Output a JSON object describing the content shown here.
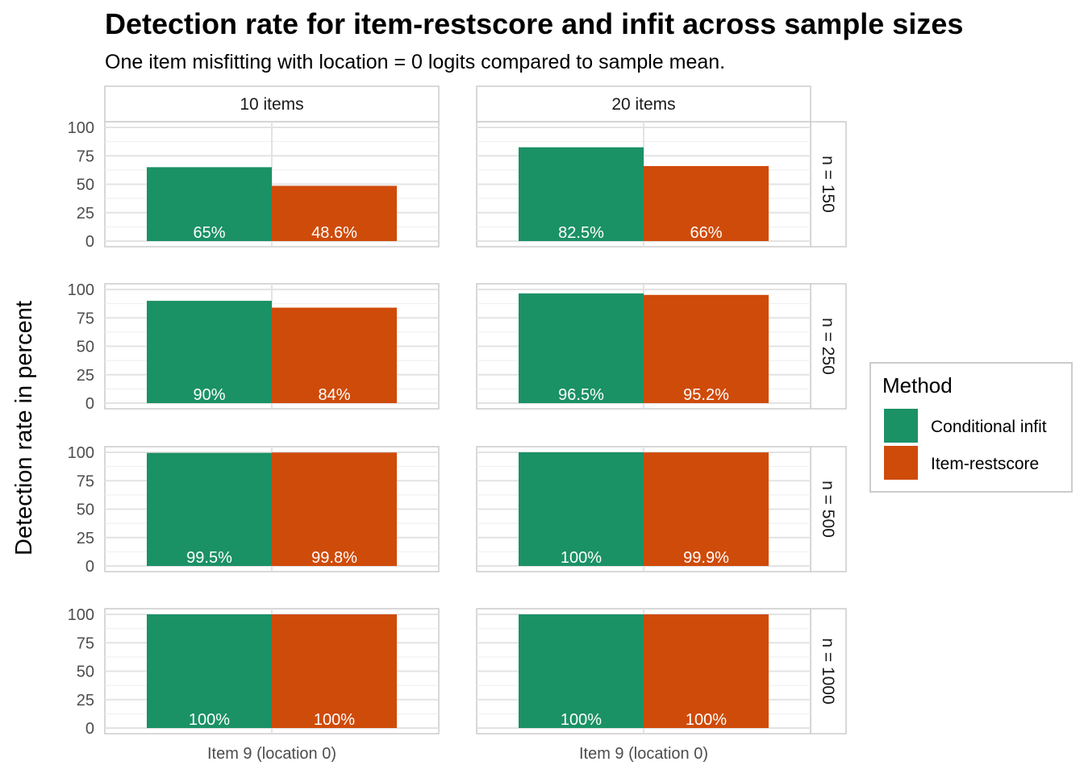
{
  "chart_data": {
    "type": "bar",
    "title": "Detection rate for item-restscore and infit across sample sizes",
    "subtitle": "One item misfitting with location = 0 logits compared to sample mean.",
    "ylabel": "Detection rate in percent",
    "xlabel": "",
    "ylim": [
      0,
      100
    ],
    "yticks": [
      "0",
      "25",
      "50",
      "75",
      "100"
    ],
    "category": "Item 9 (location 0)",
    "column_facets": [
      "10 items",
      "20 items"
    ],
    "row_facets": [
      "n = 150",
      "n = 250",
      "n = 500",
      "n = 1000"
    ],
    "legend": {
      "title": "Method",
      "position": "right",
      "entries": [
        {
          "name": "Conditional infit",
          "color": "#1b9166"
        },
        {
          "name": "Item-restscore",
          "color": "#cf4b0a"
        }
      ]
    },
    "grid": true,
    "panels": [
      {
        "row": "n = 150",
        "col": "10 items",
        "values": [
          65,
          48.6
        ],
        "labels": [
          "65%",
          "48.6%"
        ]
      },
      {
        "row": "n = 150",
        "col": "20 items",
        "values": [
          82.5,
          66
        ],
        "labels": [
          "82.5%",
          "66%"
        ]
      },
      {
        "row": "n = 250",
        "col": "10 items",
        "values": [
          90,
          84
        ],
        "labels": [
          "90%",
          "84%"
        ]
      },
      {
        "row": "n = 250",
        "col": "20 items",
        "values": [
          96.5,
          95.2
        ],
        "labels": [
          "96.5%",
          "95.2%"
        ]
      },
      {
        "row": "n = 500",
        "col": "10 items",
        "values": [
          99.5,
          99.8
        ],
        "labels": [
          "99.5%",
          "99.8%"
        ]
      },
      {
        "row": "n = 500",
        "col": "20 items",
        "values": [
          100,
          99.9
        ],
        "labels": [
          "100%",
          "99.9%"
        ]
      },
      {
        "row": "n = 1000",
        "col": "10 items",
        "values": [
          100,
          100
        ],
        "labels": [
          "100%",
          "100%"
        ]
      },
      {
        "row": "n = 1000",
        "col": "20 items",
        "values": [
          100,
          100
        ],
        "labels": [
          "100%",
          "100%"
        ]
      }
    ]
  }
}
